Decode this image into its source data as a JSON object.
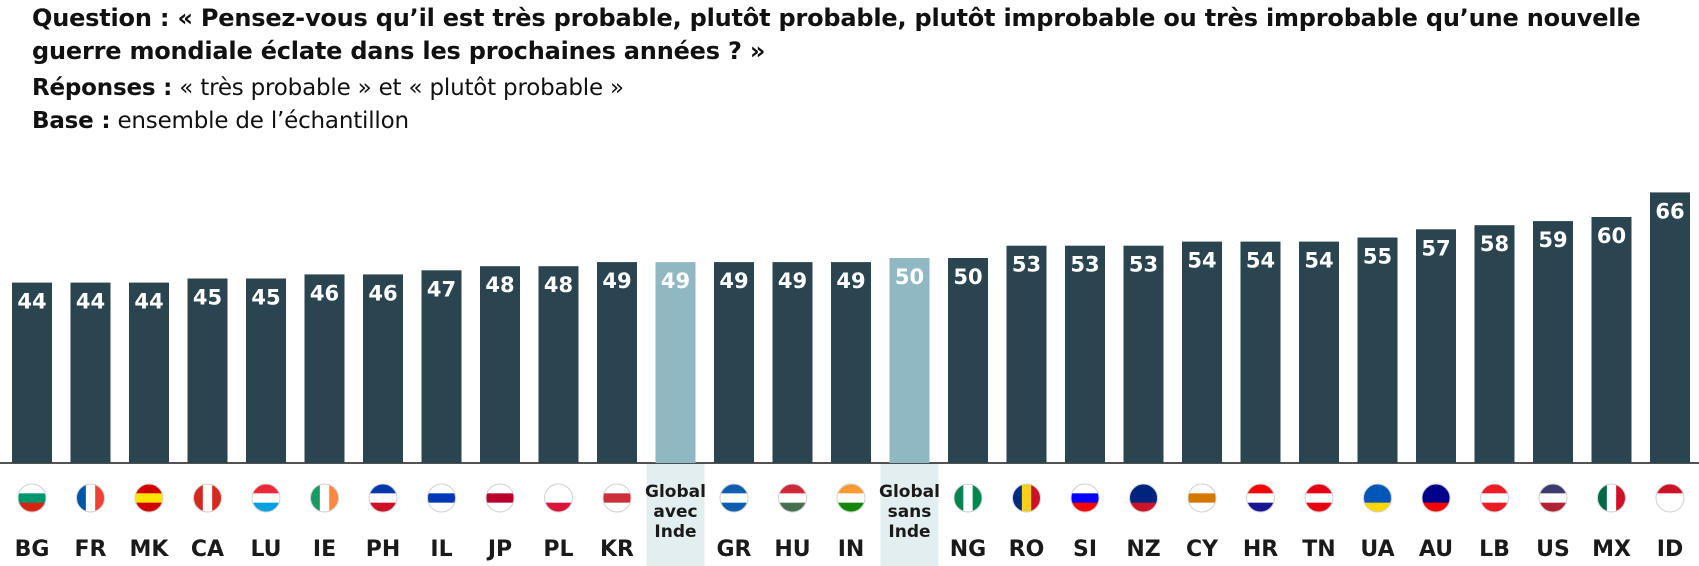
{
  "header": {
    "question_label": "Question :",
    "question_text": "« Pensez-vous qu’il est très probable, plutôt probable, plutôt improbable ou très improbable qu’une nouvelle guerre mondiale éclate dans les prochaines années ? »",
    "responses_label": "Réponses :",
    "responses_text": "« très probable » et « plutôt probable »",
    "base_label": "Base :",
    "base_text": "ensemble de l’échantillon"
  },
  "colors": {
    "bar": "#2a4550",
    "bar_global": "#8fb8c2",
    "global_band": "#e3eef0",
    "baseline": "#1a1a1a"
  },
  "chart_data": {
    "type": "bar",
    "title": "",
    "xlabel": "",
    "ylabel": "",
    "ylim": [
      0,
      70
    ],
    "grid": false,
    "legend": "none",
    "categories": [
      "BG",
      "FR",
      "MK",
      "CA",
      "LU",
      "IE",
      "PH",
      "IL",
      "JP",
      "PL",
      "KR",
      "Global avec Inde",
      "GR",
      "HU",
      "IN",
      "Global sans Inde",
      "NG",
      "RO",
      "SI",
      "NZ",
      "CY",
      "HR",
      "TN",
      "UA",
      "AU",
      "LB",
      "US",
      "MX",
      "ID"
    ],
    "values": [
      44,
      44,
      44,
      45,
      45,
      46,
      46,
      47,
      48,
      48,
      49,
      49,
      49,
      49,
      49,
      50,
      50,
      53,
      53,
      53,
      54,
      54,
      54,
      55,
      57,
      58,
      59,
      60,
      66
    ],
    "highlight": [
      false,
      false,
      false,
      false,
      false,
      false,
      false,
      false,
      false,
      false,
      false,
      true,
      false,
      false,
      false,
      true,
      false,
      false,
      false,
      false,
      false,
      false,
      false,
      false,
      false,
      false,
      false,
      false,
      false
    ],
    "flags": [
      "flag-bg-icon",
      "flag-fr-icon",
      "flag-mk-icon",
      "flag-ca-icon",
      "flag-lu-icon",
      "flag-ie-icon",
      "flag-ph-icon",
      "flag-il-icon",
      "flag-jp-icon",
      "flag-pl-icon",
      "flag-kr-icon",
      "",
      "flag-gr-icon",
      "flag-hu-icon",
      "flag-in-icon",
      "",
      "flag-ng-icon",
      "flag-ro-icon",
      "flag-si-icon",
      "flag-nz-icon",
      "flag-cy-icon",
      "flag-hr-icon",
      "flag-tn-icon",
      "flag-ua-icon",
      "flag-au-icon",
      "flag-lb-icon",
      "flag-us-icon",
      "flag-mx-icon",
      "flag-id-icon"
    ]
  }
}
